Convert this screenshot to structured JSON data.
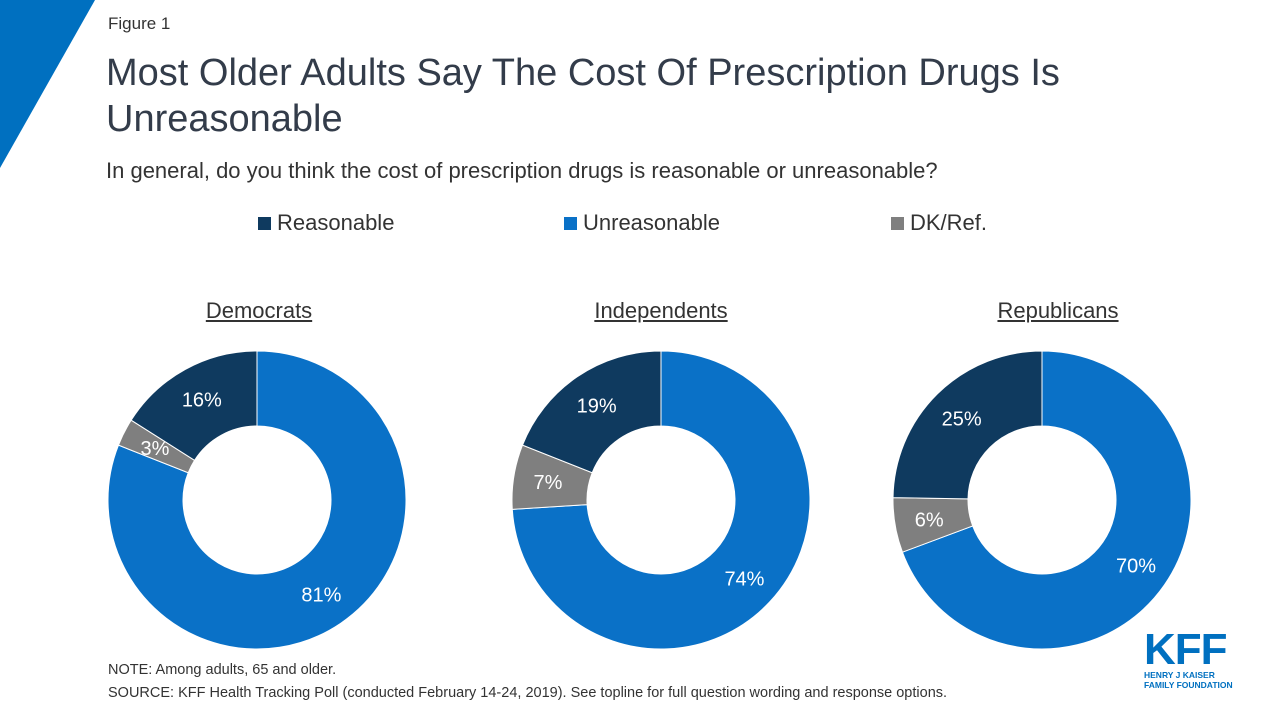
{
  "figure_label": "Figure 1",
  "title": "Most Older Adults Say The Cost Of Prescription Drugs Is Unreasonable",
  "subtitle": "In general, do you think the cost of prescription drugs is reasonable or unreasonable?",
  "colors": {
    "reasonable": "#0f3a5f",
    "unreasonable": "#0a71c7",
    "dk": "#7f7f7f",
    "accent_corner": "#0070c0"
  },
  "legend": [
    {
      "label": "Reasonable",
      "color": "#0f3a5f"
    },
    {
      "label": "Unreasonable",
      "color": "#0a71c7"
    },
    {
      "label": "DK/Ref.",
      "color": "#7f7f7f"
    }
  ],
  "chart_data": [
    {
      "type": "pie",
      "title": "Democrats",
      "slices": [
        {
          "label": "Unreasonable",
          "value": 81,
          "display": "81%"
        },
        {
          "label": "DK/Ref.",
          "value": 3,
          "display": "3%"
        },
        {
          "label": "Reasonable",
          "value": 16,
          "display": "16%"
        }
      ]
    },
    {
      "type": "pie",
      "title": "Independents",
      "slices": [
        {
          "label": "Unreasonable",
          "value": 74,
          "display": "74%"
        },
        {
          "label": "DK/Ref.",
          "value": 7,
          "display": "7%"
        },
        {
          "label": "Reasonable",
          "value": 19,
          "display": "19%"
        }
      ]
    },
    {
      "type": "pie",
      "title": "Republicans",
      "slices": [
        {
          "label": "Unreasonable",
          "value": 70,
          "display": "70%"
        },
        {
          "label": "DK/Ref.",
          "value": 6,
          "display": "6%"
        },
        {
          "label": "Reasonable",
          "value": 25,
          "display": "25%"
        }
      ]
    }
  ],
  "note": "NOTE: Among adults, 65 and older.",
  "source": "SOURCE: KFF Health Tracking Poll (conducted February 14-24, 2019). See topline for full question wording and response options.",
  "logo": {
    "main": "KFF",
    "line1": "HENRY J KAISER",
    "line2": "FAMILY FOUNDATION"
  }
}
